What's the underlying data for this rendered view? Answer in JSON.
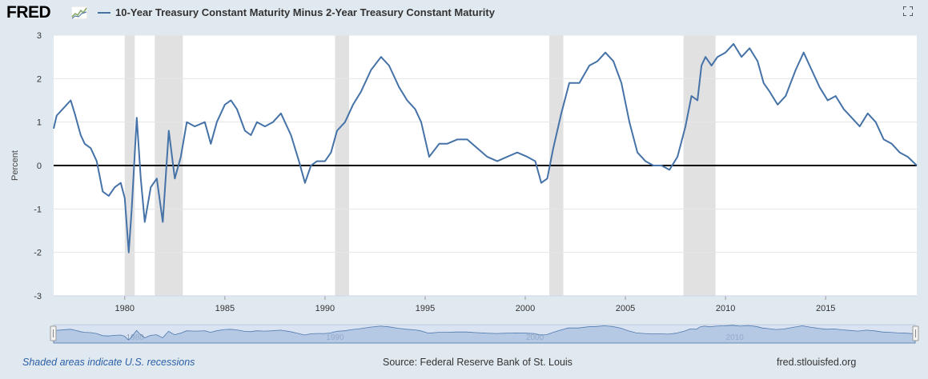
{
  "header": {
    "logo": "FRED",
    "series_title": "10-Year Treasury Constant Maturity Minus 2-Year Treasury Constant Maturity",
    "line_color": "#4572a7"
  },
  "footer": {
    "recession_note": "Shaded areas indicate U.S. recessions",
    "source": "Source: Federal Reserve Bank of St. Louis",
    "url": "fred.stlouisfed.org"
  },
  "chart_data": {
    "type": "line",
    "title": "10-Year Treasury Constant Maturity Minus 2-Year Treasury Constant Maturity",
    "xlabel": "",
    "ylabel": "Percent",
    "xlim": [
      1976.45,
      2019.55
    ],
    "ylim": [
      -3,
      3
    ],
    "yticks": [
      "3",
      "2",
      "1",
      "0",
      "-1",
      "-2",
      "-3"
    ],
    "xticks": [
      "1980",
      "1985",
      "1990",
      "1995",
      "2000",
      "2005",
      "2010",
      "2015"
    ],
    "navigator_labels": [
      "1980",
      "1990",
      "2000",
      "2010"
    ],
    "recessions": [
      [
        1980.0,
        1980.5
      ],
      [
        1981.5,
        1982.9
      ],
      [
        1990.5,
        1991.2
      ],
      [
        2001.2,
        2001.9
      ],
      [
        2007.9,
        2009.5
      ]
    ],
    "zero_line": 0,
    "series": [
      {
        "name": "10-Year Treasury Constant Maturity Minus 2-Year Treasury Constant Maturity",
        "x": [
          1976.45,
          1976.6,
          1977.0,
          1977.3,
          1977.5,
          1977.8,
          1978.0,
          1978.3,
          1978.6,
          1978.9,
          1979.2,
          1979.5,
          1979.8,
          1980.0,
          1980.2,
          1980.35,
          1980.6,
          1980.8,
          1981.0,
          1981.3,
          1981.6,
          1981.9,
          1982.2,
          1982.5,
          1982.8,
          1983.1,
          1983.5,
          1984.0,
          1984.3,
          1984.6,
          1985.0,
          1985.3,
          1985.6,
          1986.0,
          1986.3,
          1986.6,
          1987.0,
          1987.4,
          1987.8,
          1988.3,
          1988.7,
          1989.0,
          1989.3,
          1989.6,
          1990.0,
          1990.3,
          1990.6,
          1991.0,
          1991.4,
          1991.8,
          1992.3,
          1992.8,
          1993.2,
          1993.7,
          1994.1,
          1994.5,
          1994.8,
          1995.2,
          1995.7,
          1996.1,
          1996.6,
          1997.1,
          1997.6,
          1998.1,
          1998.6,
          1999.1,
          1999.6,
          2000.1,
          2000.5,
          2000.8,
          2001.1,
          2001.4,
          2001.8,
          2002.2,
          2002.7,
          2003.2,
          2003.6,
          2004.0,
          2004.4,
          2004.8,
          2005.2,
          2005.6,
          2006.0,
          2006.4,
          2006.8,
          2007.2,
          2007.6,
          2008.0,
          2008.3,
          2008.6,
          2008.8,
          2009.0,
          2009.3,
          2009.6,
          2010.0,
          2010.4,
          2010.8,
          2011.2,
          2011.6,
          2011.9,
          2012.2,
          2012.6,
          2013.0,
          2013.5,
          2013.9,
          2014.3,
          2014.7,
          2015.1,
          2015.5,
          2015.9,
          2016.3,
          2016.7,
          2017.1,
          2017.5,
          2017.9,
          2018.3,
          2018.7,
          2019.1,
          2019.55
        ],
        "y": [
          0.85,
          1.15,
          1.35,
          1.5,
          1.2,
          0.7,
          0.5,
          0.4,
          0.1,
          -0.6,
          -0.7,
          -0.5,
          -0.4,
          -0.75,
          -2.0,
          -1.0,
          1.1,
          -0.3,
          -1.3,
          -0.5,
          -0.3,
          -1.3,
          0.8,
          -0.3,
          0.2,
          1.0,
          0.9,
          1.0,
          0.5,
          1.0,
          1.4,
          1.5,
          1.3,
          0.8,
          0.7,
          1.0,
          0.9,
          1.0,
          1.2,
          0.7,
          0.1,
          -0.4,
          0.0,
          0.1,
          0.1,
          0.3,
          0.8,
          1.0,
          1.4,
          1.7,
          2.2,
          2.5,
          2.3,
          1.8,
          1.5,
          1.3,
          1.0,
          0.2,
          0.5,
          0.5,
          0.6,
          0.6,
          0.4,
          0.2,
          0.1,
          0.2,
          0.3,
          0.2,
          0.1,
          -0.4,
          -0.3,
          0.4,
          1.2,
          1.9,
          1.9,
          2.3,
          2.4,
          2.6,
          2.4,
          1.9,
          1.0,
          0.3,
          0.1,
          0.0,
          0.0,
          -0.1,
          0.2,
          0.9,
          1.6,
          1.5,
          2.3,
          2.5,
          2.3,
          2.5,
          2.6,
          2.8,
          2.5,
          2.7,
          2.4,
          1.9,
          1.7,
          1.4,
          1.6,
          2.2,
          2.6,
          2.2,
          1.8,
          1.5,
          1.6,
          1.3,
          1.1,
          0.9,
          1.2,
          1.0,
          0.6,
          0.5,
          0.3,
          0.2,
          0.0
        ]
      }
    ]
  }
}
